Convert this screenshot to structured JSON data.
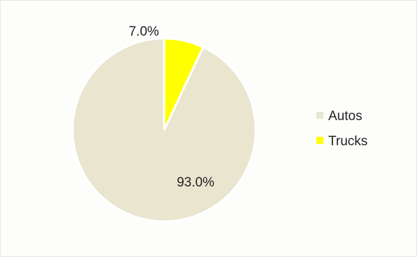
{
  "chart_data": {
    "type": "pie",
    "categories": [
      "Autos",
      "Trucks"
    ],
    "values": [
      93.0,
      7.0
    ],
    "value_labels": [
      "93.0%",
      "7.0%"
    ],
    "colors": [
      "#e9e5cf",
      "#ffff00"
    ],
    "slice_border_color": "#ffffff",
    "legend_position": "right"
  }
}
